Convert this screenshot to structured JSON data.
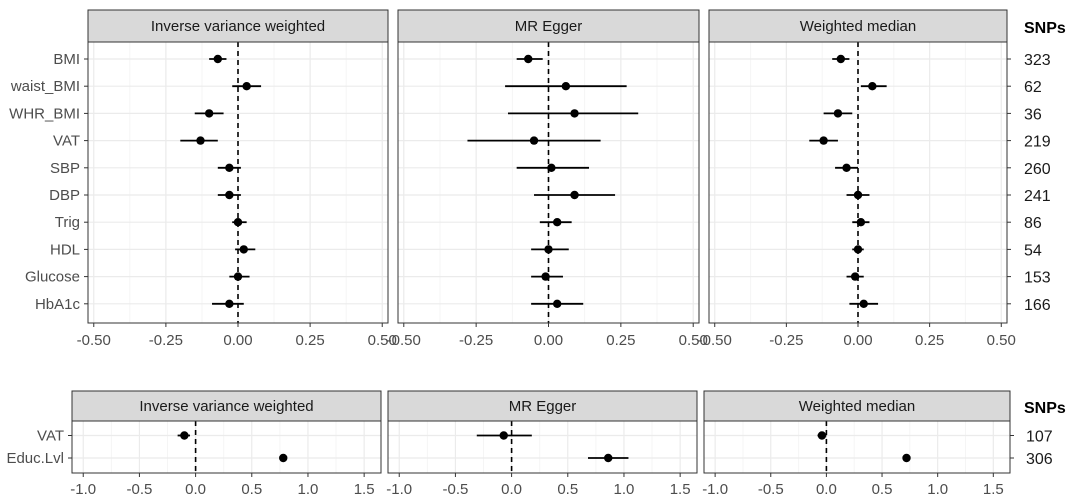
{
  "chart_data": [
    {
      "type": "forest",
      "panels": [
        "Inverse variance weighted",
        "MR Egger",
        "Weighted median"
      ],
      "rows": [
        "BMI",
        "waist_BMI",
        "WHR_BMI",
        "VAT",
        "SBP",
        "DBP",
        "Trig",
        "HDL",
        "Glucose",
        "HbA1c"
      ],
      "snps_title": "SNPs",
      "snps": [
        "323",
        "62",
        "36",
        "219",
        "260",
        "241",
        "86",
        "54",
        "153",
        "166"
      ],
      "xlim": [
        -0.52,
        0.52
      ],
      "xticks": [
        -0.5,
        -0.25,
        0,
        0.25,
        0.5
      ],
      "xtick_labels": [
        "-0.50",
        "-0.25",
        "0.00",
        "0.25",
        "0.50"
      ],
      "reference_line": 0,
      "estimates": [
        [
          {
            "est": -0.07,
            "lo": -0.1,
            "hi": -0.04
          },
          {
            "est": 0.03,
            "lo": -0.02,
            "hi": 0.08
          },
          {
            "est": -0.1,
            "lo": -0.15,
            "hi": -0.05
          },
          {
            "est": -0.13,
            "lo": -0.2,
            "hi": -0.07
          },
          {
            "est": -0.03,
            "lo": -0.07,
            "hi": 0.01
          },
          {
            "est": -0.03,
            "lo": -0.07,
            "hi": 0.01
          },
          {
            "est": 0.0,
            "lo": -0.02,
            "hi": 0.03
          },
          {
            "est": 0.02,
            "lo": -0.01,
            "hi": 0.06
          },
          {
            "est": 0.0,
            "lo": -0.03,
            "hi": 0.04
          },
          {
            "est": -0.03,
            "lo": -0.09,
            "hi": 0.02
          }
        ],
        [
          {
            "est": -0.07,
            "lo": -0.11,
            "hi": -0.02
          },
          {
            "est": 0.06,
            "lo": -0.15,
            "hi": 0.27
          },
          {
            "est": 0.09,
            "lo": -0.14,
            "hi": 0.31
          },
          {
            "est": -0.05,
            "lo": -0.28,
            "hi": 0.18
          },
          {
            "est": 0.01,
            "lo": -0.11,
            "hi": 0.14
          },
          {
            "est": 0.09,
            "lo": -0.05,
            "hi": 0.23
          },
          {
            "est": 0.03,
            "lo": -0.03,
            "hi": 0.08
          },
          {
            "est": 0.0,
            "lo": -0.06,
            "hi": 0.07
          },
          {
            "est": -0.01,
            "lo": -0.06,
            "hi": 0.05
          },
          {
            "est": 0.03,
            "lo": -0.06,
            "hi": 0.12
          }
        ],
        [
          {
            "est": -0.06,
            "lo": -0.09,
            "hi": -0.03
          },
          {
            "est": 0.05,
            "lo": 0.01,
            "hi": 0.1
          },
          {
            "est": -0.07,
            "lo": -0.12,
            "hi": -0.02
          },
          {
            "est": -0.12,
            "lo": -0.17,
            "hi": -0.07
          },
          {
            "est": -0.04,
            "lo": -0.08,
            "hi": 0.0
          },
          {
            "est": 0.0,
            "lo": -0.04,
            "hi": 0.04
          },
          {
            "est": 0.01,
            "lo": -0.02,
            "hi": 0.04
          },
          {
            "est": 0.0,
            "lo": -0.02,
            "hi": 0.02
          },
          {
            "est": -0.01,
            "lo": -0.04,
            "hi": 0.02
          },
          {
            "est": 0.02,
            "lo": -0.03,
            "hi": 0.07
          }
        ]
      ],
      "grid": true
    },
    {
      "type": "forest",
      "panels": [
        "Inverse variance weighted",
        "MR Egger",
        "Weighted median"
      ],
      "rows": [
        "VAT",
        "Educ.Lvl"
      ],
      "snps_title": "SNPs",
      "snps": [
        "107",
        "306"
      ],
      "xlim": [
        -1.1,
        1.65
      ],
      "xticks": [
        -1.0,
        -0.5,
        0,
        0.5,
        1.0,
        1.5
      ],
      "xtick_labels": [
        "-1.0",
        "-0.5",
        "0.0",
        "0.5",
        "1.0",
        "1.5"
      ],
      "reference_line": 0,
      "estimates": [
        [
          {
            "est": -0.1,
            "lo": -0.16,
            "hi": -0.05
          },
          {
            "est": 0.78,
            "lo": 0.75,
            "hi": 0.81
          }
        ],
        [
          {
            "est": -0.07,
            "lo": -0.31,
            "hi": 0.18
          },
          {
            "est": 0.86,
            "lo": 0.68,
            "hi": 1.04
          }
        ],
        [
          {
            "est": -0.04,
            "lo": -0.08,
            "hi": 0.0
          },
          {
            "est": 0.72,
            "lo": 0.69,
            "hi": 0.75
          }
        ]
      ],
      "grid": true
    }
  ],
  "colors": {
    "strip_fill": "#d9d9d9",
    "grid_major": "#ebebeb",
    "grid_minor": "#f5f5f5",
    "border": "#333333",
    "point": "#000000",
    "reference": "#000000"
  }
}
